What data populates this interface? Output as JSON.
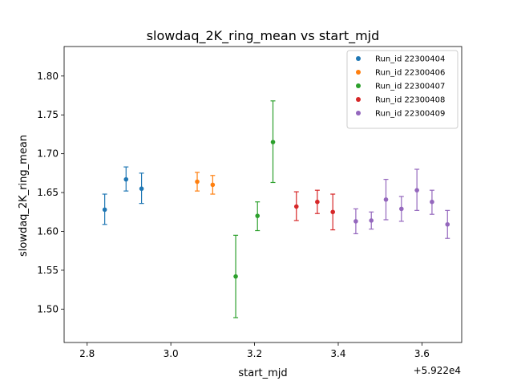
{
  "chart_data": {
    "type": "scatter",
    "title": "slowdaq_2K_ring_mean vs start_mjd",
    "xlabel": "start_mjd",
    "ylabel": "slowdaq_2K_ring_mean",
    "x_offset_label": "+5.922e4",
    "xlim": [
      2.745,
      3.695
    ],
    "ylim": [
      1.457,
      1.838
    ],
    "xticks": [
      "2.8",
      "3.0",
      "3.2",
      "3.4",
      "3.6"
    ],
    "yticks": [
      "1.50",
      "1.55",
      "1.60",
      "1.65",
      "1.70",
      "1.75",
      "1.80"
    ],
    "legend_position": "top-right",
    "series": [
      {
        "name": "Run_id 22300404",
        "color": "#1f77b4",
        "points": [
          {
            "x": 2.842,
            "y": 1.628,
            "lo": 1.609,
            "hi": 1.648
          },
          {
            "x": 2.893,
            "y": 1.667,
            "lo": 1.652,
            "hi": 1.683
          },
          {
            "x": 2.93,
            "y": 1.655,
            "lo": 1.636,
            "hi": 1.675
          }
        ]
      },
      {
        "name": "Run_id 22300406",
        "color": "#ff7f0e",
        "points": [
          {
            "x": 3.063,
            "y": 1.664,
            "lo": 1.652,
            "hi": 1.676
          },
          {
            "x": 3.1,
            "y": 1.66,
            "lo": 1.648,
            "hi": 1.672
          }
        ]
      },
      {
        "name": "Run_id 22300407",
        "color": "#2ca02c",
        "points": [
          {
            "x": 3.155,
            "y": 1.542,
            "lo": 1.489,
            "hi": 1.595
          },
          {
            "x": 3.207,
            "y": 1.62,
            "lo": 1.601,
            "hi": 1.638
          },
          {
            "x": 3.244,
            "y": 1.715,
            "lo": 1.663,
            "hi": 1.768
          }
        ]
      },
      {
        "name": "Run_id 22300408",
        "color": "#d62728",
        "points": [
          {
            "x": 3.3,
            "y": 1.632,
            "lo": 1.614,
            "hi": 1.651
          },
          {
            "x": 3.35,
            "y": 1.638,
            "lo": 1.623,
            "hi": 1.653
          },
          {
            "x": 3.387,
            "y": 1.625,
            "lo": 1.602,
            "hi": 1.648
          }
        ]
      },
      {
        "name": "Run_id 22300409",
        "color": "#9467bd",
        "points": [
          {
            "x": 3.442,
            "y": 1.613,
            "lo": 1.597,
            "hi": 1.629
          },
          {
            "x": 3.479,
            "y": 1.614,
            "lo": 1.603,
            "hi": 1.625
          },
          {
            "x": 3.514,
            "y": 1.641,
            "lo": 1.615,
            "hi": 1.667
          },
          {
            "x": 3.551,
            "y": 1.629,
            "lo": 1.613,
            "hi": 1.645
          },
          {
            "x": 3.588,
            "y": 1.653,
            "lo": 1.627,
            "hi": 1.68
          },
          {
            "x": 3.624,
            "y": 1.638,
            "lo": 1.622,
            "hi": 1.653
          },
          {
            "x": 3.661,
            "y": 1.609,
            "lo": 1.591,
            "hi": 1.627
          }
        ]
      }
    ]
  }
}
